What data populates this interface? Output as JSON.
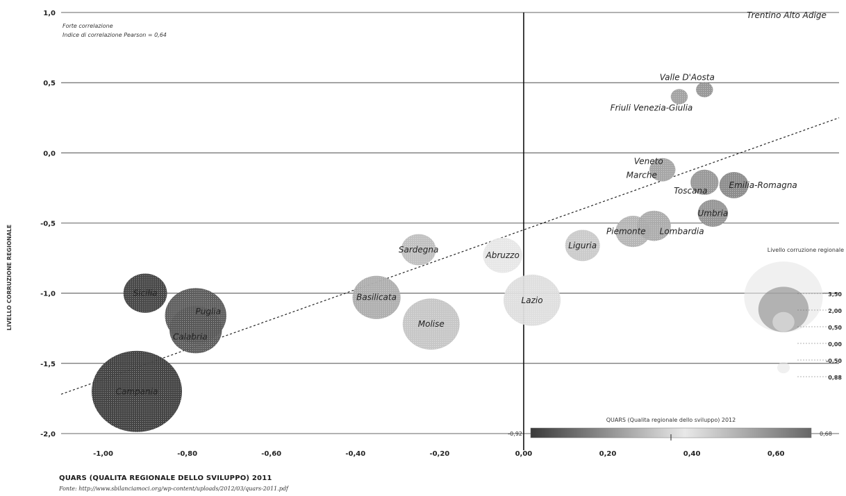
{
  "chart_data": {
    "type": "scatter",
    "subtype": "bubble",
    "title": "",
    "xlabel": "QUARS (QUALITA REGIONALE DELLO SVILUPPO) 2011",
    "ylabel": "LIVELLO CORRUZIONE REGIONALE",
    "xlim": [
      -1.1,
      0.75
    ],
    "ylim": [
      -2.0,
      1.0
    ],
    "x_ticks": [
      "-1,00",
      "-0,80",
      "-0,60",
      "-0,40",
      "-0,20",
      "0,00",
      "0,20",
      "0,40",
      "0,60"
    ],
    "y_ticks": [
      "1,0",
      "0,5",
      "0,0",
      "-0,5",
      "-1,0",
      "-1,5",
      "-2,0"
    ],
    "grid": "horizontal",
    "annotation_lines": [
      "Forte correlazione",
      "Indice di correlazione Pearson = 0,64"
    ],
    "source": "Fonte: http://www.sbilanciamoci.org/wp-content/uploads/2012/03/quars-2011.pdf",
    "trendline": {
      "x": [
        -1.1,
        0.75
      ],
      "y": [
        -1.72,
        0.25
      ]
    },
    "points": [
      {
        "name": "Trentino Alto Adige",
        "x": 0.72,
        "y": 0.98,
        "size": 0.0
      },
      {
        "name": "Valle D'Aosta",
        "x": 0.43,
        "y": 0.45,
        "size": 0.2
      },
      {
        "name": "Friuli Venezia-Giulia",
        "x": 0.37,
        "y": 0.4,
        "size": 0.2
      },
      {
        "name": "Veneto",
        "x": 0.33,
        "y": -0.12,
        "size": 0.6
      },
      {
        "name": "Marche",
        "x": 0.33,
        "y": -0.12,
        "size": 0.6
      },
      {
        "name": "Toscana",
        "x": 0.43,
        "y": -0.21,
        "size": 0.7
      },
      {
        "name": "Emilia-Romagna",
        "x": 0.5,
        "y": -0.23,
        "size": 0.75
      },
      {
        "name": "Umbria",
        "x": 0.45,
        "y": -0.43,
        "size": 0.8
      },
      {
        "name": "Piemonte",
        "x": 0.26,
        "y": -0.56,
        "size": 1.0
      },
      {
        "name": "Lombardia",
        "x": 0.31,
        "y": -0.52,
        "size": 0.95
      },
      {
        "name": "Liguria",
        "x": 0.14,
        "y": -0.66,
        "size": 1.0
      },
      {
        "name": "Sardegna",
        "x": -0.25,
        "y": -0.69,
        "size": 1.0
      },
      {
        "name": "Abruzzo",
        "x": -0.05,
        "y": -0.73,
        "size": 1.2
      },
      {
        "name": "Basilicata",
        "x": -0.35,
        "y": -1.03,
        "size": 1.6
      },
      {
        "name": "Lazio",
        "x": 0.02,
        "y": -1.05,
        "size": 2.0
      },
      {
        "name": "Molise",
        "x": -0.22,
        "y": -1.22,
        "size": 2.0
      },
      {
        "name": "Sicilia",
        "x": -0.9,
        "y": -1.0,
        "size": 1.4
      },
      {
        "name": "Puglia",
        "x": -0.78,
        "y": -1.16,
        "size": 2.2
      },
      {
        "name": "Calabria",
        "x": -0.78,
        "y": -1.26,
        "size": 1.8
      },
      {
        "name": "Campania",
        "x": -0.92,
        "y": -1.7,
        "size": 3.5
      }
    ],
    "size_legend": {
      "title": "Livello corruzione regionale",
      "values": [
        "3,50",
        "2,00",
        "0,50",
        "0,00",
        "-0,50",
        "0,88"
      ]
    },
    "color_legend": {
      "title": "QUARS (Qualita regionale dello sviluppo) 2012",
      "min": "-0,92",
      "max": "0,68",
      "color_min": "#3a3a3a",
      "color_mid": "#e8e8e8",
      "color_max": "#666666"
    }
  }
}
